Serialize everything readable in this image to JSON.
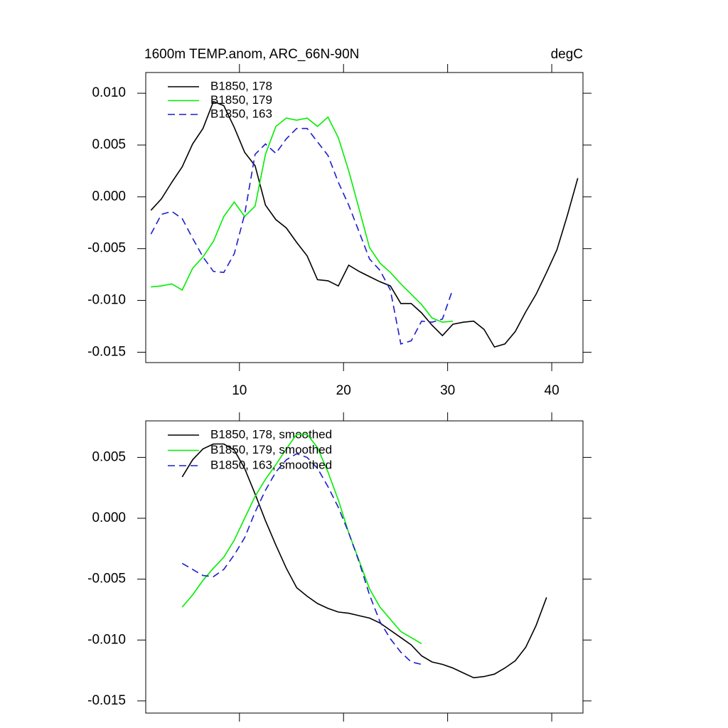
{
  "chart_data": [
    {
      "type": "line",
      "title": "1600m TEMP.anom, ARC_66N-90N",
      "units": "degC",
      "xlim": [
        1,
        43
      ],
      "xticks": [
        10,
        20,
        30,
        40
      ],
      "xtick_labels": true,
      "ylim": [
        -0.016,
        0.012
      ],
      "yticks": [
        {
          "value": 0.01,
          "label": "0.010"
        },
        0.005,
        {
          "value": 0,
          "label": "0.000"
        },
        -0.005,
        {
          "value": -0.01,
          "label": "-0.010"
        },
        -0.015
      ],
      "series": [
        {
          "name": "B1850, 178",
          "color": "#000000",
          "dash": false,
          "x": [
            1.5,
            2.5,
            3.5,
            4.5,
            5.5,
            6.5,
            7.5,
            8.5,
            9.5,
            10.5,
            11.5,
            12.5,
            13.5,
            14.5,
            15.5,
            16.5,
            17.5,
            18.5,
            19.5,
            20.5,
            21.5,
            22.5,
            23.5,
            24.5,
            25.5,
            26.5,
            27.5,
            28.5,
            29.5,
            30.5,
            31.5,
            32.5,
            33.5,
            34.5,
            35.5,
            36.5,
            37.5,
            38.5,
            39.5,
            40.5,
            41.5,
            42.5
          ],
          "values": [
            -0.0013,
            -0.0002,
            0.0014,
            0.0029,
            0.0051,
            0.0066,
            0.0092,
            0.0088,
            0.0067,
            0.0043,
            0.003,
            -0.0008,
            -0.0022,
            -0.003,
            -0.0044,
            -0.0057,
            -0.008,
            -0.0081,
            -0.0086,
            -0.0066,
            -0.0072,
            -0.0077,
            -0.0082,
            -0.0086,
            -0.0103,
            -0.0103,
            -0.0112,
            -0.0124,
            -0.0134,
            -0.0123,
            -0.0121,
            -0.012,
            -0.0128,
            -0.0145,
            -0.0142,
            -0.013,
            -0.0111,
            -0.0094,
            -0.0073,
            -0.0051,
            -0.0018,
            0.0018
          ]
        },
        {
          "name": "B1850, 179",
          "color": "#00ee00",
          "dash": false,
          "x": [
            1.5,
            2.5,
            3.5,
            4.5,
            5.5,
            6.5,
            7.5,
            8.5,
            9.5,
            10.5,
            11.5,
            12.5,
            13.5,
            14.5,
            15.5,
            16.5,
            17.5,
            18.5,
            19.5,
            20.5,
            21.5,
            22.5,
            23.5,
            24.5,
            25.5,
            26.5,
            27.5,
            28.5,
            29.5,
            30.5
          ],
          "values": [
            -0.0087,
            -0.0086,
            -0.0084,
            -0.009,
            -0.0069,
            -0.0058,
            -0.0043,
            -0.0019,
            -0.0005,
            -0.0019,
            -0.0009,
            0.0041,
            0.0068,
            0.0076,
            0.0074,
            0.0076,
            0.0068,
            0.0077,
            0.0057,
            0.0025,
            -0.0012,
            -0.0049,
            -0.0064,
            -0.0073,
            -0.0084,
            -0.0094,
            -0.0104,
            -0.0117,
            -0.0121,
            -0.012
          ]
        },
        {
          "name": "B1850, 163",
          "color": "#1c1ccc",
          "dash": true,
          "x": [
            1.5,
            2.5,
            3.5,
            4.5,
            5.5,
            6.5,
            7.5,
            8.5,
            9.5,
            10.5,
            11.5,
            12.5,
            13.5,
            14.5,
            15.5,
            16.5,
            17.5,
            18.5,
            19.5,
            20.5,
            21.5,
            22.5,
            23.5,
            24.5,
            25.5,
            26.5,
            27.5,
            28.5,
            29.5,
            30.5
          ],
          "values": [
            -0.0036,
            -0.0017,
            -0.0014,
            -0.0021,
            -0.004,
            -0.0058,
            -0.0072,
            -0.0073,
            -0.0055,
            -0.0017,
            0.0041,
            0.0051,
            0.0042,
            0.0056,
            0.0066,
            0.0066,
            0.0053,
            0.004,
            0.0014,
            -0.0008,
            -0.0034,
            -0.006,
            -0.0071,
            -0.009,
            -0.0142,
            -0.0139,
            -0.012,
            -0.0121,
            -0.0118,
            -0.0089
          ]
        }
      ]
    },
    {
      "type": "line",
      "xlim": [
        1,
        43
      ],
      "xticks": [
        10,
        20,
        30,
        40
      ],
      "xtick_labels": false,
      "ylim": [
        -0.016,
        0.008
      ],
      "yticks": [
        0.005,
        {
          "value": 0,
          "label": "0.000"
        },
        -0.005,
        {
          "value": -0.01,
          "label": "-0.010"
        },
        -0.015
      ],
      "series": [
        {
          "name": "B1850, 178, smoothed",
          "color": "#000000",
          "dash": false,
          "x": [
            4.5,
            5.5,
            6.5,
            7.5,
            8.5,
            9.5,
            10.5,
            11.5,
            12.5,
            13.5,
            14.5,
            15.5,
            16.5,
            17.5,
            18.5,
            19.5,
            20.5,
            21.5,
            22.5,
            23.5,
            24.5,
            25.5,
            26.5,
            27.5,
            28.5,
            29.5,
            30.5,
            31.5,
            32.5,
            33.5,
            34.5,
            35.5,
            36.5,
            37.5,
            38.5,
            39.5
          ],
          "values": [
            0.0034,
            0.0048,
            0.0057,
            0.0061,
            0.0061,
            0.0056,
            0.0041,
            0.002,
            -0.0002,
            -0.0022,
            -0.0041,
            -0.0057,
            -0.0064,
            -0.007,
            -0.0074,
            -0.0077,
            -0.0078,
            -0.008,
            -0.0082,
            -0.0086,
            -0.0092,
            -0.0098,
            -0.0104,
            -0.0113,
            -0.0118,
            -0.012,
            -0.0123,
            -0.0127,
            -0.0131,
            -0.013,
            -0.0128,
            -0.0123,
            -0.0117,
            -0.0106,
            -0.0088,
            -0.0065
          ]
        },
        {
          "name": "B1850, 179, smoothed",
          "color": "#00ee00",
          "dash": false,
          "x": [
            4.5,
            5.5,
            6.5,
            7.5,
            8.5,
            9.5,
            10.5,
            11.5,
            12.5,
            13.5,
            14.5,
            15.5,
            16.5,
            17.5,
            18.5,
            19.5,
            20.5,
            21.5,
            22.5,
            23.5,
            24.5,
            25.5,
            26.5,
            27.5
          ],
          "values": [
            -0.0073,
            -0.0063,
            -0.0051,
            -0.0041,
            -0.0032,
            -0.0018,
            0,
            0.0018,
            0.0032,
            0.0044,
            0.0057,
            0.0069,
            0.0069,
            0.0058,
            0.0038,
            0.0015,
            -0.0012,
            -0.0035,
            -0.0058,
            -0.0073,
            -0.0083,
            -0.0093,
            -0.0098,
            -0.0103
          ]
        },
        {
          "name": "B1850, 163, smoothed",
          "color": "#1c1ccc",
          "dash": true,
          "x": [
            4.5,
            5.5,
            6.5,
            7.5,
            8.5,
            9.5,
            10.5,
            11.5,
            12.5,
            13.5,
            14.5,
            15.5,
            16.5,
            17.5,
            18.5,
            19.5,
            20.5,
            21.5,
            22.5,
            23.5,
            24.5,
            25.5,
            26.5,
            27.5
          ],
          "values": [
            -0.0037,
            -0.0042,
            -0.0047,
            -0.0048,
            -0.0042,
            -0.003,
            -0.0016,
            0.0005,
            0.0023,
            0.0038,
            0.0048,
            0.0053,
            0.005,
            0.0041,
            0.0026,
            0.0009,
            -0.0012,
            -0.0036,
            -0.0063,
            -0.0085,
            -0.0099,
            -0.011,
            -0.0118,
            -0.012
          ]
        }
      ]
    }
  ]
}
